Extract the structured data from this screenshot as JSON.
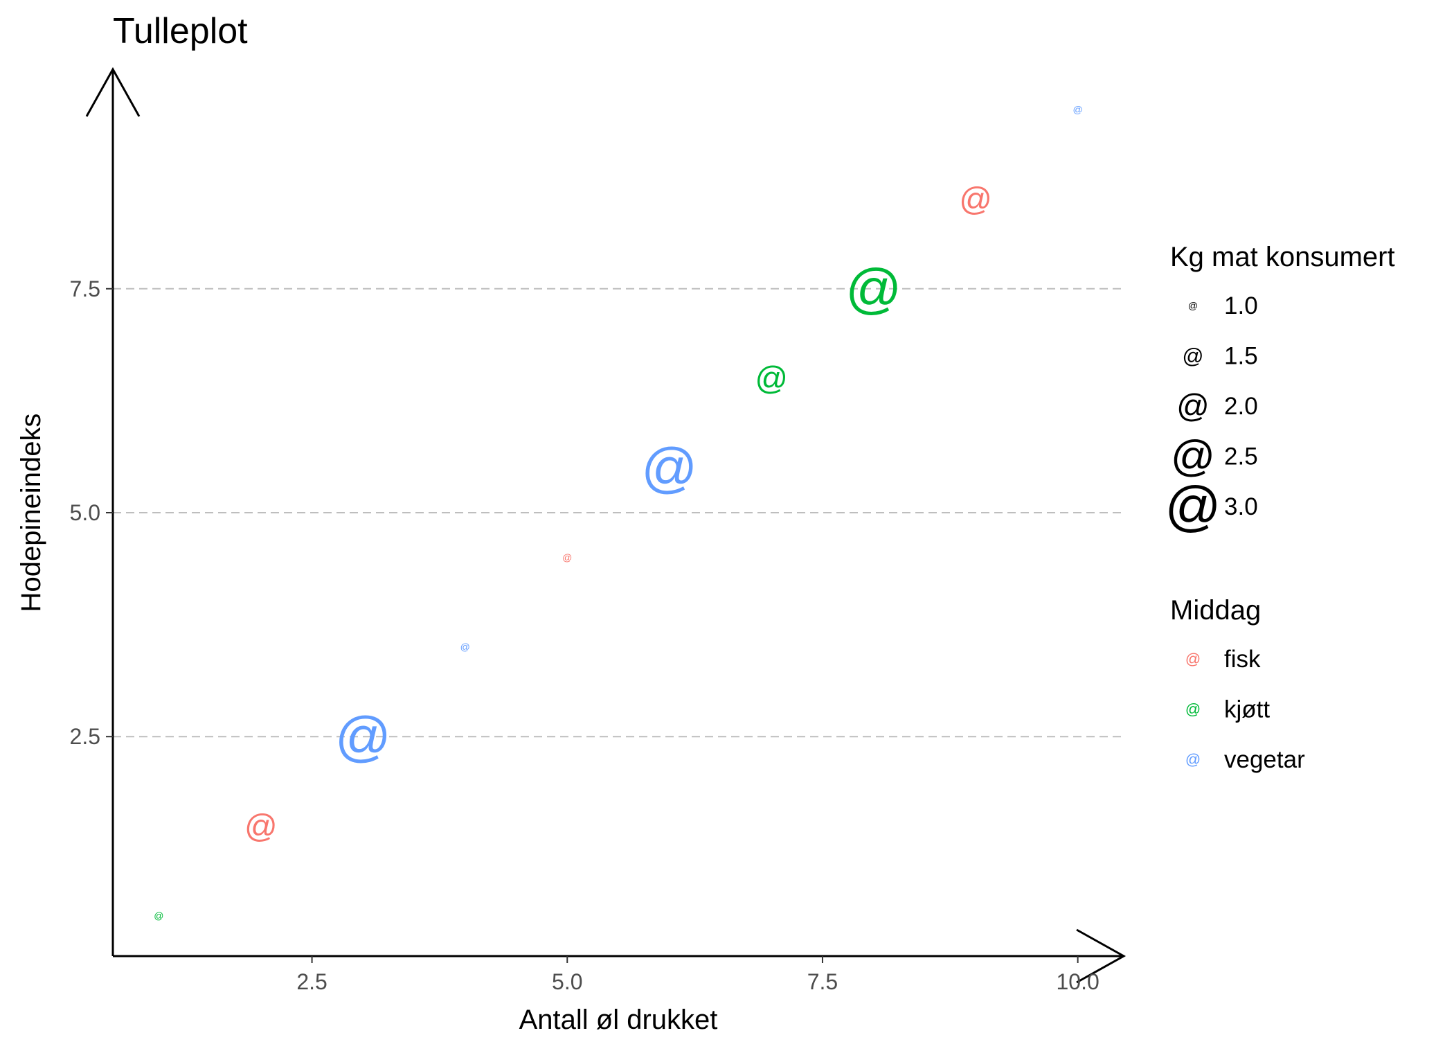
{
  "chart_data": {
    "type": "scatter",
    "title": "Tulleplot",
    "xlabel": "Antall øl drukket",
    "ylabel": "Hodepineindeks",
    "marker": "@",
    "xlim": [
      0.55,
      10.45
    ],
    "ylim": [
      0.05,
      9.95
    ],
    "x_ticks": [
      {
        "value": 2.5,
        "label": "2.5"
      },
      {
        "value": 5.0,
        "label": "5.0"
      },
      {
        "value": 7.5,
        "label": "7.5"
      },
      {
        "value": 10.0,
        "label": "10.0"
      }
    ],
    "y_ticks": [
      {
        "value": 2.5,
        "label": "2.5"
      },
      {
        "value": 5.0,
        "label": "5.0"
      },
      {
        "value": 7.5,
        "label": "7.5"
      }
    ],
    "grid": {
      "horizontal": true,
      "vertical": false,
      "style": "dashed",
      "color": "#bebebe"
    },
    "legend_position": "right",
    "points": [
      {
        "x": 1,
        "y": 0.5,
        "middag": "kjøtt",
        "kg": 1.0
      },
      {
        "x": 2,
        "y": 1.5,
        "middag": "fisk",
        "kg": 2.0
      },
      {
        "x": 3,
        "y": 2.5,
        "middag": "vegetar",
        "kg": 3.0
      },
      {
        "x": 4,
        "y": 3.5,
        "middag": "vegetar",
        "kg": 1.0
      },
      {
        "x": 5,
        "y": 4.5,
        "middag": "fisk",
        "kg": 1.0
      },
      {
        "x": 6,
        "y": 5.5,
        "middag": "vegetar",
        "kg": 3.0
      },
      {
        "x": 7,
        "y": 6.5,
        "middag": "kjøtt",
        "kg": 2.0
      },
      {
        "x": 8,
        "y": 7.5,
        "middag": "kjøtt",
        "kg": 3.0
      },
      {
        "x": 9,
        "y": 8.5,
        "middag": "fisk",
        "kg": 2.0
      },
      {
        "x": 10,
        "y": 9.5,
        "middag": "vegetar",
        "kg": 1.0
      }
    ],
    "legend_size": {
      "title": "Kg mat konsumert",
      "entries": [
        {
          "label": "1.0",
          "value": 1.0
        },
        {
          "label": "1.5",
          "value": 1.5
        },
        {
          "label": "2.0",
          "value": 2.0
        },
        {
          "label": "2.5",
          "value": 2.5
        },
        {
          "label": "3.0",
          "value": 3.0
        }
      ]
    },
    "legend_color": {
      "title": "Middag",
      "entries": [
        {
          "label": "fisk",
          "color": "#F8766D"
        },
        {
          "label": "kjøtt",
          "color": "#00BA38"
        },
        {
          "label": "vegetar",
          "color": "#619CFF"
        }
      ]
    }
  }
}
